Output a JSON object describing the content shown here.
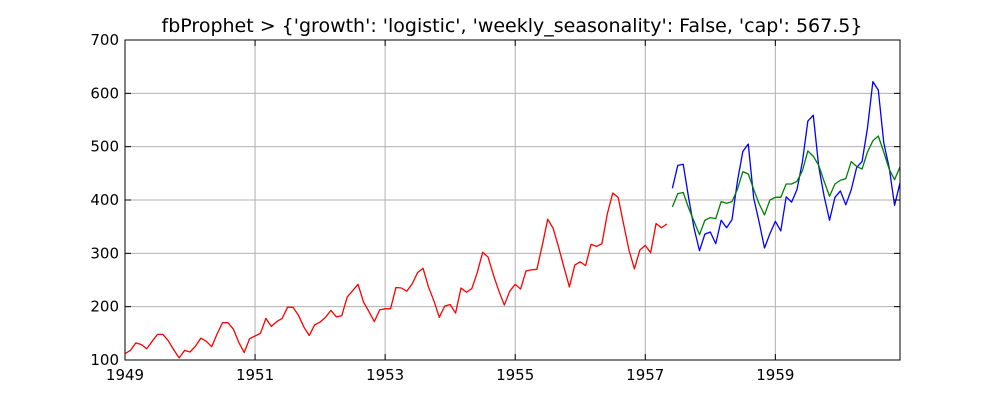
{
  "chart_data": {
    "type": "line",
    "title": "fbProphet > {'growth': 'logistic', 'weekly_seasonality': False, 'cap': 567.5}",
    "xlabel": "",
    "ylabel": "",
    "xlim": [
      1949.0,
      1960.917
    ],
    "ylim": [
      100,
      700
    ],
    "grid": true,
    "xticks": [
      1949,
      1951,
      1953,
      1955,
      1957,
      1959
    ],
    "xtick_labels": [
      "1949",
      "1951",
      "1953",
      "1955",
      "1957",
      "1959"
    ],
    "yticks": [
      100,
      200,
      300,
      400,
      500,
      600,
      700
    ],
    "ytick_labels": [
      "100",
      "200",
      "300",
      "400",
      "500",
      "600",
      "700"
    ],
    "series": [
      {
        "color": "#ff0000",
        "x_start": 1949.0,
        "x_step": 0.08333,
        "values": [
          112,
          118,
          132,
          129,
          121,
          135,
          148,
          148,
          136,
          119,
          104,
          118,
          115,
          126,
          141,
          135,
          125,
          149,
          170,
          170,
          158,
          133,
          114,
          140,
          145,
          150,
          178,
          163,
          172,
          178,
          199,
          199,
          184,
          162,
          146,
          166,
          171,
          180,
          193,
          181,
          183,
          218,
          230,
          242,
          209,
          191,
          172,
          194,
          196,
          196,
          236,
          235,
          229,
          243,
          264,
          272,
          237,
          211,
          180,
          201,
          204,
          188,
          235,
          227,
          234,
          264,
          302,
          293,
          259,
          229,
          203,
          229,
          242,
          233,
          267,
          269,
          270,
          315,
          364,
          347,
          312,
          274,
          237,
          278,
          284,
          277,
          317,
          313,
          318,
          374,
          413,
          405,
          355,
          306,
          271,
          306,
          315,
          301,
          356,
          348,
          355
        ]
      },
      {
        "color": "#0000ff",
        "x_start": 1957.417,
        "x_step": 0.08333,
        "values": [
          422,
          465,
          467,
          404,
          347,
          305,
          336,
          340,
          318,
          362,
          348,
          363,
          435,
          491,
          505,
          404,
          359,
          310,
          337,
          360,
          342,
          406,
          396,
          420,
          472,
          548,
          559,
          463,
          407,
          362,
          405,
          417,
          391,
          419,
          461,
          472,
          535,
          622,
          606,
          508,
          461,
          390,
          432
        ]
      },
      {
        "color": "#008000",
        "x_start": 1957.417,
        "x_step": 0.08333,
        "values": [
          387,
          412,
          414,
          385,
          360,
          335,
          362,
          367,
          365,
          397,
          394,
          397,
          420,
          453,
          449,
          420,
          393,
          372,
          400,
          405,
          405,
          430,
          430,
          435,
          455,
          492,
          482,
          465,
          435,
          407,
          430,
          437,
          440,
          472,
          463,
          458,
          490,
          511,
          520,
          490,
          458,
          438,
          462
        ]
      }
    ]
  }
}
